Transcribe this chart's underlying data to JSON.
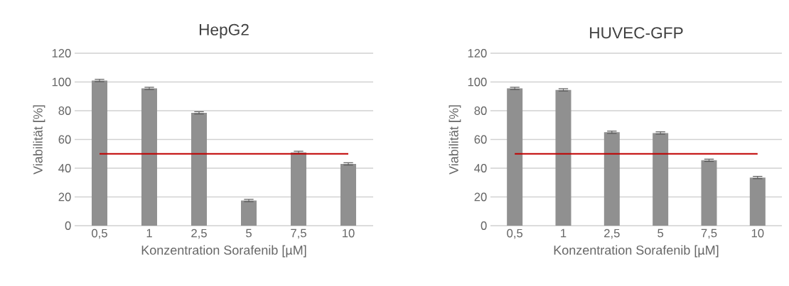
{
  "chart_data": [
    {
      "type": "bar",
      "title": "HepG2",
      "xlabel": "Konzentration Sorafenib [µM]",
      "ylabel": "Viabilität [%]",
      "categories": [
        "0,5",
        "1",
        "2,5",
        "5",
        "7,5",
        "10"
      ],
      "ylim": [
        0,
        120
      ],
      "yticks": [
        0,
        20,
        40,
        60,
        80,
        100,
        120
      ],
      "grid": "y",
      "series": [
        {
          "color": "#909090",
          "values": [
            101,
            95.5,
            78.5,
            17.5,
            51,
            43
          ],
          "errors": [
            0.8,
            0.8,
            0.8,
            0.8,
            0.8,
            0.8
          ]
        },
        {
          "type": "line",
          "color": "#c00000",
          "values": [
            50,
            50,
            50,
            50,
            50,
            50
          ]
        }
      ]
    },
    {
      "type": "bar",
      "title": "HUVEC-GFP",
      "xlabel": "Konzentration Sorafenib [µM]",
      "ylabel": "Viabilität [%]",
      "categories": [
        "0,5",
        "1",
        "2,5",
        "5",
        "7,5",
        "10"
      ],
      "ylim": [
        0,
        120
      ],
      "yticks": [
        0,
        20,
        40,
        60,
        80,
        100,
        120
      ],
      "grid": "y",
      "series": [
        {
          "color": "#909090",
          "values": [
            95.5,
            94.5,
            65,
            64.5,
            45.5,
            33.5
          ],
          "errors": [
            0.8,
            0.8,
            0.8,
            0.8,
            0.8,
            0.8
          ]
        },
        {
          "type": "line",
          "color": "#c00000",
          "values": [
            50,
            50,
            50,
            50,
            50,
            50
          ]
        }
      ]
    }
  ]
}
